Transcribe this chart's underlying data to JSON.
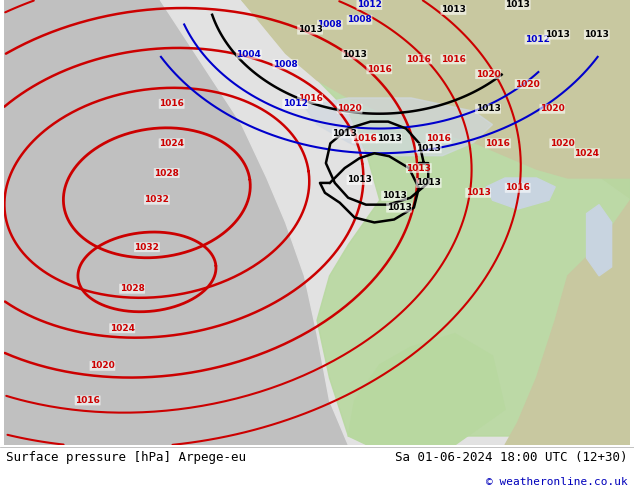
{
  "fig_width": 6.34,
  "fig_height": 4.9,
  "dpi": 100,
  "bg_color": "#ffffff",
  "footer_left": "Surface pressure [hPa] Arpege-eu",
  "footer_right": "Sa 01-06-2024 18:00 UTC (12+30)",
  "footer_copyright": "© weatheronline.co.uk",
  "footer_fontsize": 9,
  "footer_color": "#000000",
  "footer_copyright_color": "#0000bb",
  "land_color": "#c8c8a0",
  "green_land_color": "#b8d8a0",
  "grey_ocean_color": "#c8c8c8",
  "white_forecast_color": "#e8e8e8",
  "isobar_red": "#cc0000",
  "isobar_black": "#000000",
  "isobar_blue": "#0000cc"
}
